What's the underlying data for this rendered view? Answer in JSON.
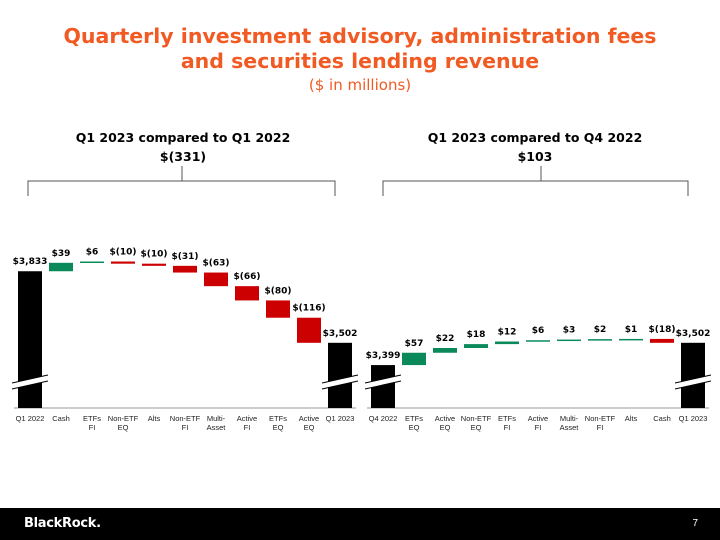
{
  "header": {
    "title_line1": "Quarterly investment advisory, administration fees",
    "title_line2": "and securities lending revenue",
    "subtitle": "($ in millions)"
  },
  "panels": [
    {
      "heading": "Q1 2023 compared to Q1 2022",
      "change": "$(331)"
    },
    {
      "heading": "Q1 2023 compared to Q4 2022",
      "change": "$103"
    }
  ],
  "footer": {
    "logo": "BlackRock.",
    "page": "7"
  },
  "colors": {
    "title": "#f15a22",
    "increase": "#0a8a5a",
    "decrease": "#cc0000",
    "total": "#000000"
  },
  "chart_data": [
    {
      "type": "bar",
      "subtype": "waterfall",
      "categories": [
        "Q1 2022",
        "Cash",
        "ETFs FI",
        "Non-ETF EQ",
        "Alts",
        "Non-ETF FI",
        "Multi-Asset",
        "Active FI",
        "ETFs EQ",
        "Active EQ",
        "Q1 2023"
      ],
      "values": [
        3833,
        39,
        6,
        -10,
        -10,
        -31,
        -63,
        -66,
        -80,
        -116,
        3502
      ],
      "labels": [
        "$3,833",
        "$39",
        "$6",
        "$(10)",
        "$(10)",
        "$(31)",
        "$(63)",
        "$(66)",
        "$(80)",
        "$(116)",
        "$3,502"
      ],
      "kinds": [
        "total",
        "delta",
        "delta",
        "delta",
        "delta",
        "delta",
        "delta",
        "delta",
        "delta",
        "delta",
        "total"
      ],
      "axis_break": true,
      "ylim": [
        3330,
        3885
      ]
    },
    {
      "type": "bar",
      "subtype": "waterfall",
      "categories": [
        "Q4 2022",
        "ETFs EQ",
        "Active EQ",
        "Non-ETF EQ",
        "ETFs FI",
        "Active FI",
        "Multi-Asset",
        "Non-ETF FI",
        "Alts",
        "Cash",
        "Q1 2023"
      ],
      "values": [
        3399,
        57,
        22,
        18,
        12,
        6,
        3,
        2,
        1,
        -18,
        3502
      ],
      "labels": [
        "$3,399",
        "$57",
        "$22",
        "$18",
        "$12",
        "$6",
        "$3",
        "$2",
        "$1",
        "$(18)",
        "$3,502"
      ],
      "kinds": [
        "total",
        "delta",
        "delta",
        "delta",
        "delta",
        "delta",
        "delta",
        "delta",
        "delta",
        "delta",
        "total"
      ],
      "axis_break": true,
      "ylim": [
        3330,
        3885
      ]
    }
  ]
}
